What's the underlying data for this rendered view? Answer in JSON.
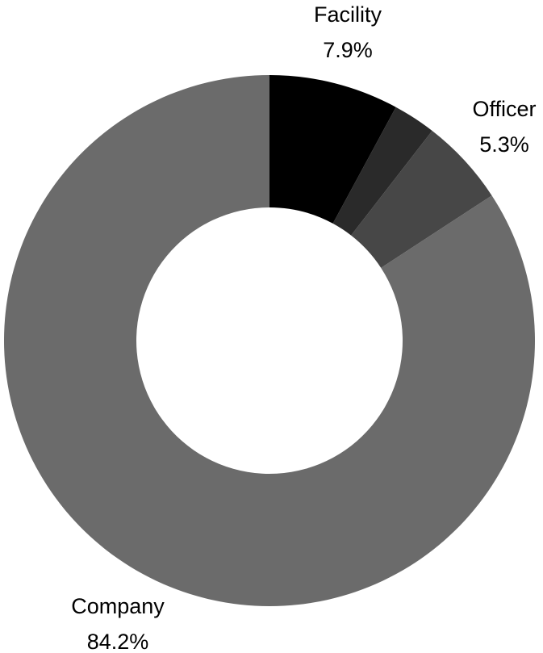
{
  "chart_data": {
    "type": "pie",
    "variant": "donut",
    "slices": [
      {
        "label": "Facility",
        "value": 7.9,
        "percent_text": "7.9%",
        "color": "#000000"
      },
      {
        "label": "",
        "value": 2.6,
        "percent_text": "",
        "color": "#2a2a2a"
      },
      {
        "label": "Officer",
        "value": 5.3,
        "percent_text": "5.3%",
        "color": "#474747"
      },
      {
        "label": "Company",
        "value": 84.2,
        "percent_text": "84.2%",
        "color": "#6b6b6b"
      }
    ]
  }
}
